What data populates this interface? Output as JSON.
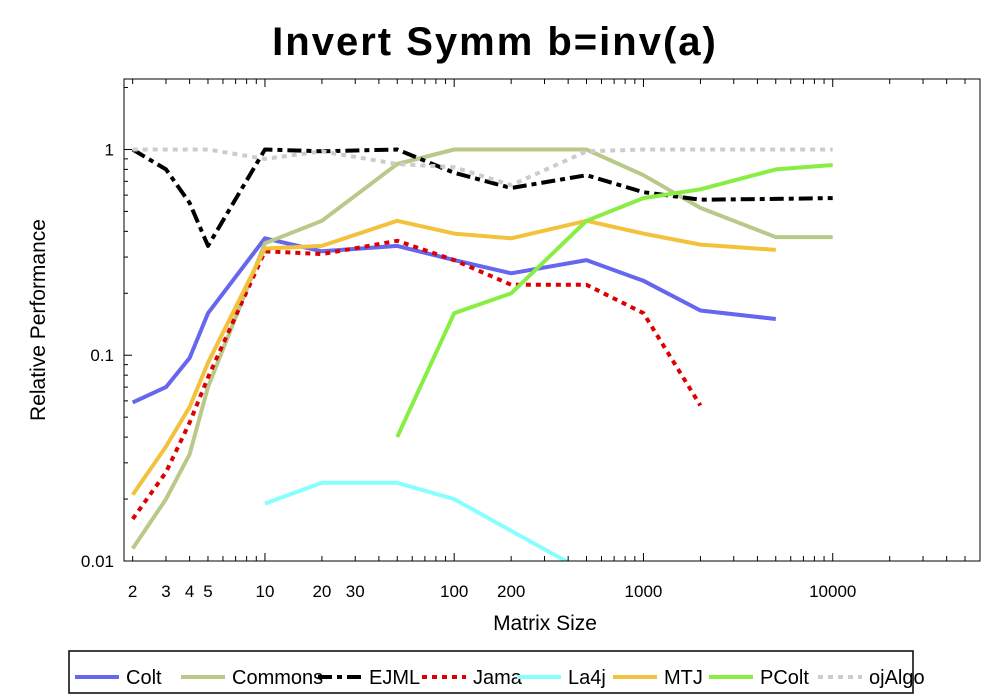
{
  "chart_data": {
    "type": "line",
    "title": "Invert Symm b=inv(a)",
    "xlabel": "Matrix Size",
    "ylabel": "Relative Performance",
    "x_scale": "log",
    "y_scale": "log",
    "xlim": [
      1.8,
      60000
    ],
    "ylim": [
      0.01,
      2.2
    ],
    "x_ticks": [
      {
        "value": 2,
        "label": "2"
      },
      {
        "value": 3,
        "label": "3"
      },
      {
        "value": 4,
        "label": "4"
      },
      {
        "value": 5,
        "label": "5"
      },
      {
        "value": 10,
        "label": "10"
      },
      {
        "value": 20,
        "label": "20"
      },
      {
        "value": 30,
        "label": "30"
      },
      {
        "value": 100,
        "label": "100"
      },
      {
        "value": 200,
        "label": "200"
      },
      {
        "value": 1000,
        "label": "1000"
      },
      {
        "value": 10000,
        "label": "10000"
      }
    ],
    "y_ticks": [
      {
        "value": 0.01,
        "label": "0.01"
      },
      {
        "value": 0.1,
        "label": "0.1"
      },
      {
        "value": 1,
        "label": "1"
      }
    ],
    "grid": false,
    "legend_position": "bottom",
    "x": [
      2,
      3,
      4,
      5,
      10,
      20,
      50,
      100,
      200,
      500,
      1000,
      2000,
      5000,
      10000
    ],
    "series": [
      {
        "name": "Colt",
        "color": "#6666ee",
        "dash": "solid",
        "values": [
          0.059,
          0.07,
          0.097,
          0.16,
          0.37,
          0.32,
          0.34,
          0.29,
          0.25,
          0.29,
          0.23,
          0.165,
          0.15,
          null
        ]
      },
      {
        "name": "Commons",
        "color": "#b8c98a",
        "dash": "solid",
        "values": [
          0.0115,
          0.02,
          0.033,
          0.07,
          0.35,
          0.45,
          0.85,
          1.0,
          1.0,
          1.0,
          0.75,
          0.52,
          0.375,
          0.375
        ]
      },
      {
        "name": "EJML",
        "color": "#000000",
        "dash": "dashdot",
        "values": [
          1.0,
          0.8,
          0.55,
          0.34,
          1.0,
          0.98,
          1.0,
          0.77,
          0.65,
          0.75,
          0.62,
          0.57,
          0.575,
          0.58
        ]
      },
      {
        "name": "Jama",
        "color": "#dd0000",
        "dash": "dot",
        "values": [
          0.016,
          0.027,
          0.047,
          0.078,
          0.32,
          0.31,
          0.36,
          0.29,
          0.22,
          0.22,
          0.16,
          0.057,
          null,
          null
        ]
      },
      {
        "name": "La4j",
        "color": "#88ffff",
        "dash": "solid",
        "values": [
          null,
          null,
          null,
          null,
          0.019,
          0.024,
          0.024,
          0.02,
          0.014,
          0.0088,
          null,
          null,
          null,
          null
        ]
      },
      {
        "name": "MTJ",
        "color": "#f2c23c",
        "dash": "solid",
        "values": [
          0.021,
          0.036,
          0.056,
          0.092,
          0.33,
          0.34,
          0.45,
          0.39,
          0.37,
          0.45,
          0.39,
          0.345,
          0.325,
          null
        ]
      },
      {
        "name": "PColt",
        "color": "#88ee44",
        "dash": "solid",
        "values": [
          null,
          null,
          null,
          null,
          null,
          null,
          0.04,
          0.16,
          0.2,
          0.45,
          0.58,
          0.64,
          0.8,
          0.84
        ]
      },
      {
        "name": "ojAlgo",
        "color": "#cccccc",
        "dash": "dot",
        "values": [
          1.0,
          1.0,
          1.0,
          1.0,
          0.9,
          0.98,
          0.85,
          0.82,
          0.67,
          0.98,
          1.0,
          1.0,
          1.0,
          1.0
        ]
      }
    ]
  }
}
